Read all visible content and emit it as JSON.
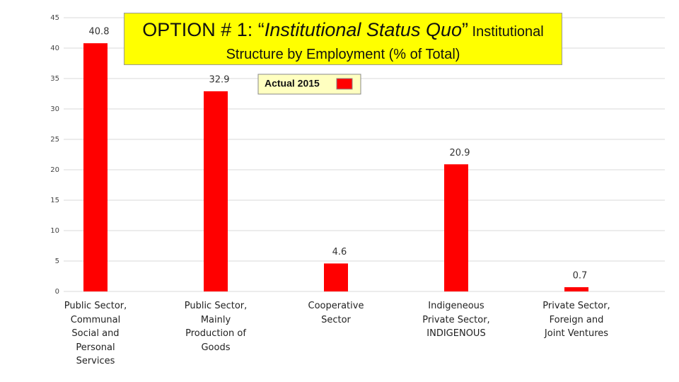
{
  "chart_data": {
    "type": "bar",
    "title": [
      "OPTION # 1: “",
      "Institutional Status Quo",
      "”",
      " Institutional Structure by Employment (% of Total)"
    ],
    "categories": [
      "Public Sector, Communal Social and Personal Services",
      "Public Sector, Mainly Production of Goods",
      "Cooperative Sector",
      "Indigeneous Private Sector, INDIGENOUS",
      "Private Sector, Foreign and Joint Ventures"
    ],
    "series": [
      {
        "name": "Actual 2015",
        "color": "#ff0000",
        "values": [
          40.8,
          32.9,
          4.6,
          20.9,
          0.7
        ]
      }
    ],
    "ylim": [
      0,
      45
    ],
    "yticks": [
      0,
      5,
      10,
      15,
      20,
      25,
      30,
      35,
      40,
      45
    ],
    "grid": true
  }
}
